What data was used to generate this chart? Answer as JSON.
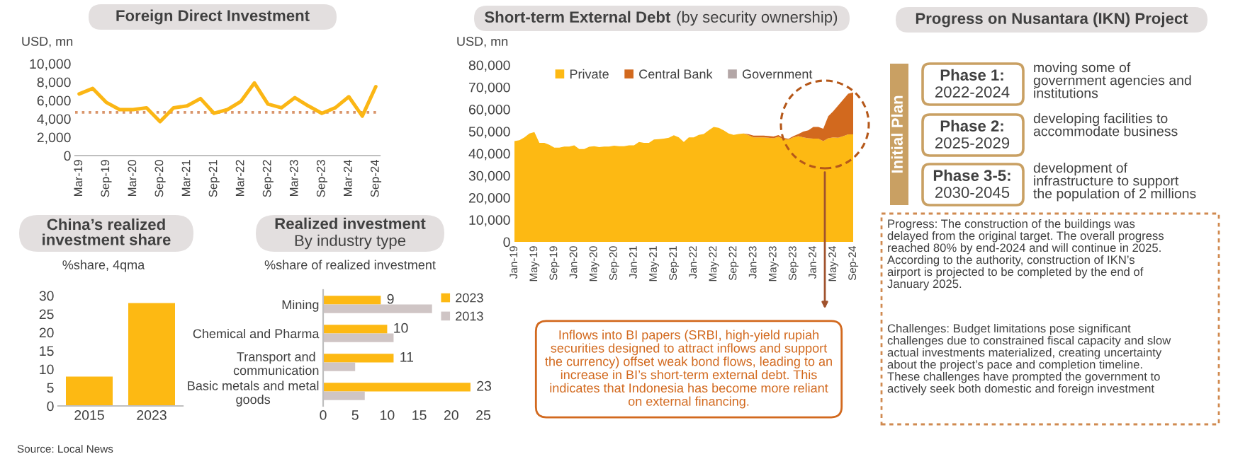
{
  "chart_data": [
    {
      "type": "line",
      "title": "Foreign Direct Investment",
      "ylabel": "USD, mn",
      "categories": [
        "Mar-19",
        null,
        "Sep-19",
        null,
        "Mar-20",
        null,
        "Sep-20",
        null,
        "Mar-21",
        null,
        "Sep-21",
        null,
        "Mar-22",
        null,
        "Sep-22",
        null,
        "Mar-23",
        null,
        "Sep-23",
        null,
        "Mar-24",
        null,
        "Sep-24"
      ],
      "series": [
        {
          "color": "#fbb614",
          "values": [
            6700,
            7300,
            5800,
            5000,
            5000,
            5200,
            3700,
            5200,
            5400,
            6200,
            4600,
            5000,
            5900,
            7900,
            5600,
            5200,
            6300,
            5400,
            4600,
            5200,
            6400,
            4300,
            7500
          ]
        }
      ],
      "ylim": [
        0,
        10000
      ],
      "yticks": [
        0,
        {
          "value": 2000,
          "label": "2,000"
        },
        {
          "value": 4000,
          "label": "4,000"
        },
        {
          "value": 6000,
          "label": "6,000"
        },
        {
          "value": 8000,
          "label": "8,000"
        },
        {
          "value": 10000,
          "label": "10,000"
        }
      ],
      "ref_lines": [
        {
          "axis": "y",
          "value": 4700,
          "color": "#d9956b",
          "line_style": "dotted"
        }
      ]
    },
    {
      "type": "area",
      "title": "Short-term External Debt",
      "subtitle": "(by security ownership)",
      "ylabel": "USD, mn",
      "stacked": true,
      "legend": "top",
      "categories": [
        "Jan-19",
        null,
        null,
        null,
        "May-19",
        null,
        null,
        null,
        "Sep-19",
        null,
        null,
        null,
        "Jan-20",
        null,
        null,
        null,
        "May-20",
        null,
        null,
        null,
        "Sep-20",
        null,
        null,
        null,
        "Jan-21",
        null,
        null,
        null,
        "May-21",
        null,
        null,
        null,
        "Sep-21",
        null,
        null,
        null,
        "Jan-22",
        null,
        null,
        null,
        "May-22",
        null,
        null,
        null,
        "Sep-22",
        null,
        null,
        null,
        "Jan-23",
        null,
        null,
        null,
        "May-23",
        null,
        null,
        null,
        "Sep-23",
        null,
        null,
        null,
        "Jan-24",
        null,
        null,
        null,
        "May-24",
        null,
        null,
        null,
        "Sep-24"
      ],
      "series": [
        {
          "name": "Private",
          "color": "#fdb913",
          "values": [
            45600,
            46000,
            47300,
            49000,
            49700,
            44800,
            44800,
            43900,
            42600,
            42600,
            43100,
            43100,
            43700,
            42000,
            42000,
            43000,
            43300,
            42900,
            43100,
            43100,
            43500,
            43300,
            43300,
            43700,
            43700,
            45200,
            44800,
            44800,
            46300,
            46500,
            46700,
            47100,
            48200,
            47300,
            45200,
            47300,
            47300,
            48400,
            48800,
            50500,
            52000,
            51600,
            50500,
            49000,
            48400,
            48800,
            49000,
            48200,
            47300,
            47300,
            47300,
            47100,
            46900,
            47500,
            46500,
            46300,
            47300,
            47800,
            47300,
            46900,
            46700,
            46700,
            45600,
            46900,
            47300,
            47100,
            47800,
            48600,
            48600
          ]
        },
        {
          "name": "Central Bank",
          "color": "#d2691e",
          "values": [
            0,
            0,
            0,
            0,
            0,
            0,
            0,
            0,
            0,
            0,
            0,
            0,
            0,
            0,
            0,
            0,
            0,
            0,
            0,
            0,
            0,
            0,
            0,
            0,
            0,
            0,
            0,
            0,
            0,
            0,
            0,
            0,
            0,
            0,
            0,
            0,
            0,
            0,
            0,
            0,
            0,
            0,
            0,
            0,
            0,
            0,
            0,
            500,
            800,
            800,
            800,
            800,
            800,
            800,
            500,
            300,
            500,
            1000,
            2600,
            3600,
            5300,
            5300,
            5600,
            10000,
            11800,
            14700,
            16600,
            18400,
            19000
          ]
        },
        {
          "name": "Government",
          "color": "#b3a6a6",
          "values": [
            null,
            null,
            null,
            null,
            null,
            null,
            null,
            null,
            null,
            null,
            null,
            null,
            null,
            null,
            null,
            null,
            null,
            null,
            null,
            null,
            null,
            null,
            null,
            null,
            null,
            null,
            null,
            null,
            null,
            null,
            null,
            null,
            null,
            null,
            null,
            null,
            null,
            null,
            null,
            null,
            null,
            null,
            null,
            null,
            null,
            null,
            null,
            null,
            null,
            null,
            null,
            null,
            null,
            null,
            null,
            null,
            null,
            null,
            null,
            null,
            null,
            null,
            null,
            null,
            null,
            null,
            null,
            null,
            null
          ]
        }
      ],
      "ylim": [
        0,
        80000
      ],
      "yticks": [
        0,
        {
          "value": 10000,
          "label": "10,000"
        },
        {
          "value": 20000,
          "label": "20,000"
        },
        {
          "value": 30000,
          "label": "30,000"
        },
        {
          "value": 40000,
          "label": "40,000"
        },
        {
          "value": 50000,
          "label": "50,000"
        },
        {
          "value": 60000,
          "label": "60,000"
        },
        {
          "value": 70000,
          "label": "70,000"
        },
        {
          "value": 80000,
          "label": "80,000"
        }
      ],
      "annotations": [
        "Inflows into BI papers (SRBI, high-yield rupiah\nsecurities designed to attract inflows and support\nthe currency) offset weak bond flows, leading to an\nincrease in BI’s short-term external debt. This\nindicates that Indonesia has become more reliant\non external financing."
      ]
    },
    {
      "type": "bar",
      "title": "China’s realized\ninvestment share",
      "ylabel": "%share, 4qma",
      "categories": [
        "2015",
        "2023"
      ],
      "values": [
        8,
        28
      ],
      "color": "#fdb913",
      "ylim": [
        0,
        30
      ],
      "yticks": [
        0,
        5,
        10,
        15,
        20,
        25,
        30
      ],
      "annotations": [
        "Source: Local News"
      ]
    },
    {
      "type": "bar",
      "title": "Realized investment",
      "subtitle": "By industry type",
      "ylabel": "%share of realized investment",
      "orientation": "horizontal",
      "legend": "top right",
      "categories": [
        "Mining",
        "Chemical and Pharma",
        "Transport and\ncommunication",
        "Basic metals and metal\ngoods"
      ],
      "series": [
        {
          "name": "2023",
          "color": "#fdb913",
          "values": [
            9,
            10,
            11,
            23
          ],
          "value_labels": [
            "9",
            "10",
            "11",
            "23"
          ]
        },
        {
          "name": "2013",
          "color": "#cfc5c5",
          "values": [
            17,
            11,
            5,
            6.5
          ]
        }
      ],
      "xlim": [
        0,
        25
      ],
      "xticks": [
        0,
        5,
        10,
        15,
        20,
        25
      ]
    },
    {
      "type": "other",
      "title": "Progress on Nusantara (IKN) Project",
      "annotations": [
        "Initial Plan",
        "Phase 1:",
        "2022-2024",
        "moving some of\ngovernment agencies and\ninstitutions",
        "Phase 2:",
        "2025-2029",
        "developing facilities to\naccommodate business",
        "Phase 3-5:",
        "2030-2045",
        "development of\ninfrastructure to support\nthe population of 2 millions",
        "Progress: The construction of the buildings was\ndelayed from the original target. The overall progress\nreached 80% by end-2024 and will continue in 2025.\nAccording to the authority, construction of IKN’s\nairport is projected to be completed by the end of\nJanuary 2025.",
        "Challenges: Budget limitations pose significant\nchallenges due to constrained fiscal capacity and slow\nactual investments materialized, creating uncertainty\nabout the project’s pace and completion timeline.\nThese challenges have prompted the government to\nactively seek both domestic and foreign investment"
      ]
    }
  ]
}
